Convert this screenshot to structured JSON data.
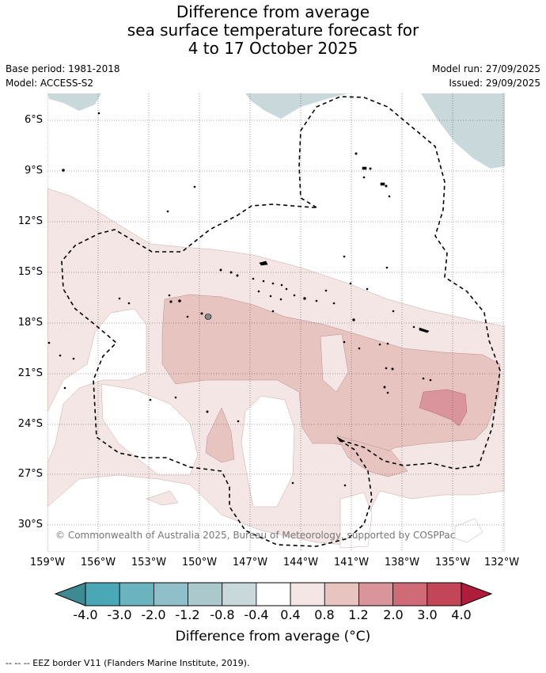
{
  "title": {
    "line1": "Difference from average",
    "line2": "sea surface temperature forecast for",
    "line3": "4 to 17 October 2025"
  },
  "meta": {
    "base_period": "Base period: 1981-2018",
    "model": "Model: ACCESS-S2",
    "model_run": "Model run: 27/09/2025",
    "issued": "Issued: 29/09/2025"
  },
  "axes": {
    "lat_ticks": [
      "6°S",
      "9°S",
      "12°S",
      "15°S",
      "18°S",
      "21°S",
      "24°S",
      "27°S",
      "30°S"
    ],
    "lon_ticks": [
      "159°W",
      "156°W",
      "153°W",
      "150°W",
      "147°W",
      "144°W",
      "141°W",
      "138°W",
      "135°W",
      "132°W"
    ]
  },
  "copyright": "© Commonwealth of Australia 2025, Bureau of Meteorology, supported by COSPPac",
  "colorbar": {
    "label": "Difference from average (°C)",
    "ticks": [
      "-4.0",
      "-3.0",
      "-2.0",
      "-1.2",
      "-0.8",
      "-0.4",
      "0.4",
      "0.8",
      "1.2",
      "2.0",
      "3.0",
      "4.0"
    ],
    "colors": [
      "#4aa8b6",
      "#6cb3c0",
      "#8fbfc8",
      "#abc9cd",
      "#c8d8db",
      "#ffffff",
      "#f4e6e5",
      "#e8c4c1",
      "#d9959b",
      "#cf6b77",
      "#c24658"
    ],
    "under_color": "#3d8a92",
    "over_color": "#b01c3b"
  },
  "footer": "--  --  -- EEZ border V11 (Flanders Marine Institute, 2019)."
}
